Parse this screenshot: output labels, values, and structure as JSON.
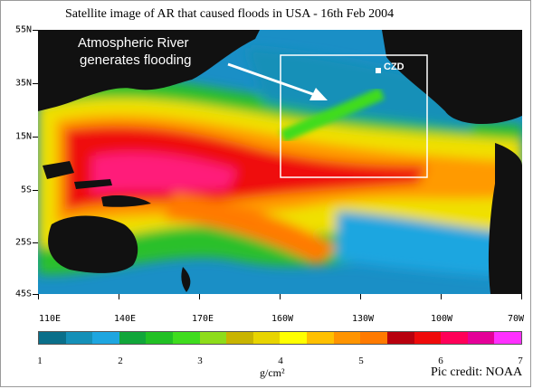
{
  "title": "Satellite image of AR that caused floods in USA - 16th Feb 2004",
  "annotation": {
    "line1": "Atmospheric River",
    "line2": "generates flooding",
    "station_label": "CZD"
  },
  "latitude_labels": [
    "55N",
    "35N",
    "15N",
    "5S",
    "25S",
    "45S"
  ],
  "longitude_labels": [
    "110E",
    "140E",
    "170E",
    "160W",
    "130W",
    "100W",
    "70W"
  ],
  "colorbar": {
    "colors": [
      "#0a6f8a",
      "#1590b8",
      "#1ea6e0",
      "#11a63a",
      "#21c024",
      "#3fdc1e",
      "#8edc1a",
      "#c8b400",
      "#e8d400",
      "#ffff00",
      "#ffc000",
      "#ff9400",
      "#ff7a00",
      "#b8000e",
      "#ef0a0a",
      "#ff0058",
      "#e40098",
      "#ff30ff"
    ],
    "ticks": [
      "1",
      "2",
      "3",
      "4",
      "5",
      "6",
      "7"
    ],
    "unit": "g/cm²"
  },
  "credit": "Pic credit: NOAA",
  "colors": {
    "ocean_dry": "#1a8fc6",
    "land": "#111111",
    "box": "#ffffff"
  }
}
